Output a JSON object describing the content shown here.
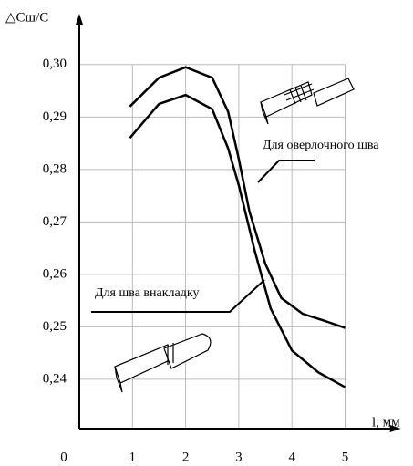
{
  "chart_data": {
    "type": "line",
    "y_label": "△Cш/C",
    "x_label": "l, мм",
    "xlim": [
      0,
      6.05
    ],
    "ylim": [
      0.2306,
      0.3097
    ],
    "xticks": [
      0,
      1,
      2,
      3,
      4,
      5
    ],
    "yticks": [
      {
        "value": 0.24,
        "label": "0,24"
      },
      {
        "value": 0.25,
        "label": "0,25"
      },
      {
        "value": 0.26,
        "label": "0,26"
      },
      {
        "value": 0.27,
        "label": "0,27"
      },
      {
        "value": 0.28,
        "label": "0,28"
      },
      {
        "value": 0.29,
        "label": "0,29"
      },
      {
        "value": 0.3,
        "label": "0,30"
      }
    ],
    "grid": true,
    "series": [
      {
        "name": "Для оверлочного шва",
        "color": "#000000",
        "x": [
          0.95,
          1.5,
          2.0,
          2.5,
          2.8,
          3.0,
          3.2,
          3.5,
          3.8,
          4.2,
          4.6,
          5.0
        ],
        "values": [
          0.292,
          0.2975,
          0.2995,
          0.2975,
          0.291,
          0.282,
          0.272,
          0.262,
          0.2555,
          0.2525,
          0.2512,
          0.2498
        ]
      },
      {
        "name": "Для шва внакладку",
        "color": "#000000",
        "x": [
          0.95,
          1.5,
          2.0,
          2.5,
          2.8,
          3.0,
          3.3,
          3.6,
          4.0,
          4.5,
          5.0
        ],
        "values": [
          0.286,
          0.2925,
          0.2942,
          0.2915,
          0.284,
          0.277,
          0.2645,
          0.2535,
          0.2455,
          0.2413,
          0.2385
        ]
      }
    ]
  }
}
